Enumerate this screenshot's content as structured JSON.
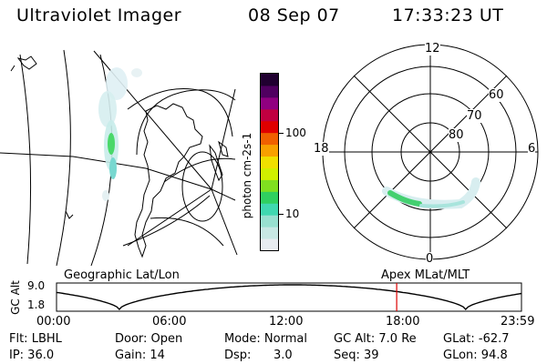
{
  "header": {
    "instrument": "Ultraviolet Imager",
    "date": "08 Sep 07",
    "time": "17:33:23 UT"
  },
  "colorbar": {
    "unit_label": "photon cm-2s-1",
    "ticks": [
      "100",
      "10"
    ],
    "colors": [
      "#e8ecf0",
      "#c8e8e4",
      "#98e0d0",
      "#40d8b0",
      "#30d060",
      "#80e020",
      "#d0f000",
      "#f0e000",
      "#f8a000",
      "#f06000",
      "#e00000",
      "#c00040",
      "#900080",
      "#500060",
      "#200030"
    ]
  },
  "polar": {
    "mlt_labels": {
      "top": "12",
      "left": "18",
      "right": "6",
      "bottom": "0"
    },
    "lat_labels": [
      "60",
      "70",
      "80"
    ]
  },
  "orbit": {
    "y_axis_label": "GC Alt",
    "y_ticks": [
      "9.0",
      "1.8"
    ],
    "left_label": "Geographic Lat/Lon",
    "right_label": "Apex MLat/MLT",
    "x_ticks": [
      "00:00",
      "06:00",
      "12:00",
      "18:00",
      "23:59"
    ],
    "marker_time_fraction": 0.7316,
    "marker_color": "#dd0000"
  },
  "footer": {
    "filter": "Flt: LBHL",
    "door": "Door: Open",
    "mode": "Mode: Normal",
    "gc_alt": "GC Alt: 7.0 Re",
    "glat": "GLat: -62.7",
    "ip": "IP: 36.0",
    "gain": "Gain: 14",
    "dsp_label": "Dsp:",
    "dsp_value": "3.0",
    "seq": "Seq: 39",
    "glon": "GLon:  94.8"
  }
}
